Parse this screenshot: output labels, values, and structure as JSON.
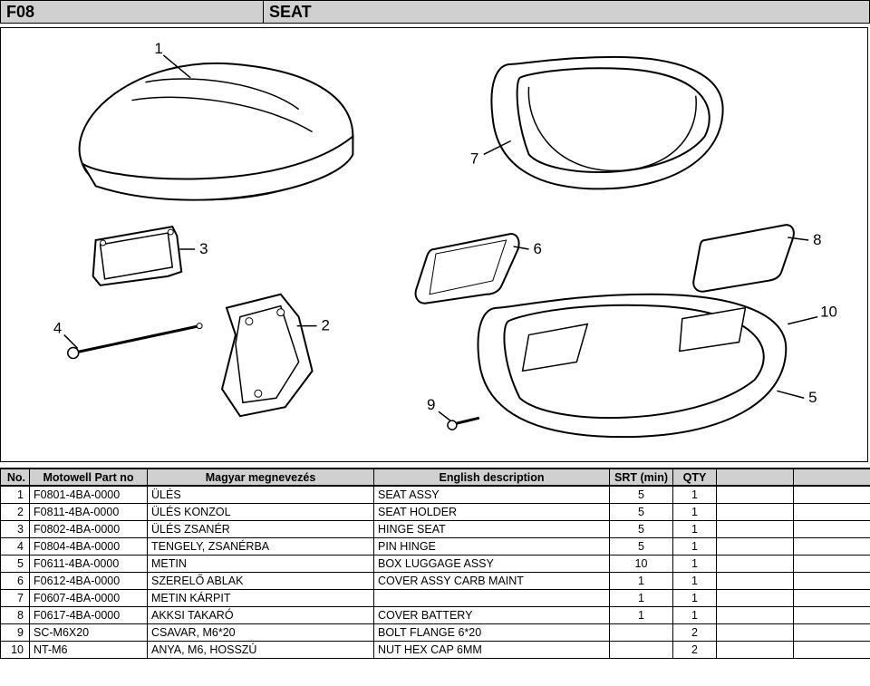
{
  "header": {
    "code": "F08",
    "title": "SEAT"
  },
  "diagram": {
    "callouts": [
      "1",
      "2",
      "3",
      "4",
      "5",
      "6",
      "7",
      "8",
      "9",
      "10"
    ]
  },
  "table": {
    "columns": {
      "no": "No.",
      "part": "Motowell Part no",
      "hu": "Magyar megnevezés",
      "en": "English description",
      "srt": "SRT (min)",
      "qty": "QTY"
    },
    "rows": [
      {
        "no": "1",
        "part": "F0801-4BA-0000",
        "hu": "ÜLÉS",
        "en": "SEAT ASSY",
        "srt": "5",
        "qty": "1"
      },
      {
        "no": "2",
        "part": "F0811-4BA-0000",
        "hu": "ÜLÉS KONZOL",
        "en": "SEAT HOLDER",
        "srt": "5",
        "qty": "1"
      },
      {
        "no": "3",
        "part": "F0802-4BA-0000",
        "hu": "ÜLÉS ZSANÉR",
        "en": "HINGE SEAT",
        "srt": "5",
        "qty": "1"
      },
      {
        "no": "4",
        "part": "F0804-4BA-0000",
        "hu": "TENGELY, ZSANÉRBA",
        "en": "PIN HINGE",
        "srt": "5",
        "qty": "1"
      },
      {
        "no": "5",
        "part": "F0611-4BA-0000",
        "hu": "METIN",
        "en": "BOX LUGGAGE ASSY",
        "srt": "10",
        "qty": "1"
      },
      {
        "no": "6",
        "part": "F0612-4BA-0000",
        "hu": "SZERELŐ ABLAK",
        "en": "COVER ASSY CARB MAINT",
        "srt": "1",
        "qty": "1"
      },
      {
        "no": "7",
        "part": "F0607-4BA-0000",
        "hu": "METIN KÁRPIT",
        "en": "",
        "srt": "1",
        "qty": "1"
      },
      {
        "no": "8",
        "part": "F0617-4BA-0000",
        "hu": "AKKSI TAKARÓ",
        "en": "COVER BATTERY",
        "srt": "1",
        "qty": "1"
      },
      {
        "no": "9",
        "part": "SC-M6X20",
        "hu": "CSAVAR, M6*20",
        "en": "BOLT FLANGE 6*20",
        "srt": "",
        "qty": "2"
      },
      {
        "no": "10",
        "part": "NT-M6",
        "hu": "ANYA, M6, HOSSZÚ",
        "en": "NUT HEX CAP 6MM",
        "srt": "",
        "qty": "2"
      }
    ]
  },
  "style": {
    "header_bg": "#d0d0d0",
    "border_color": "#000000",
    "bg": "#ffffff",
    "font": "Arial"
  }
}
